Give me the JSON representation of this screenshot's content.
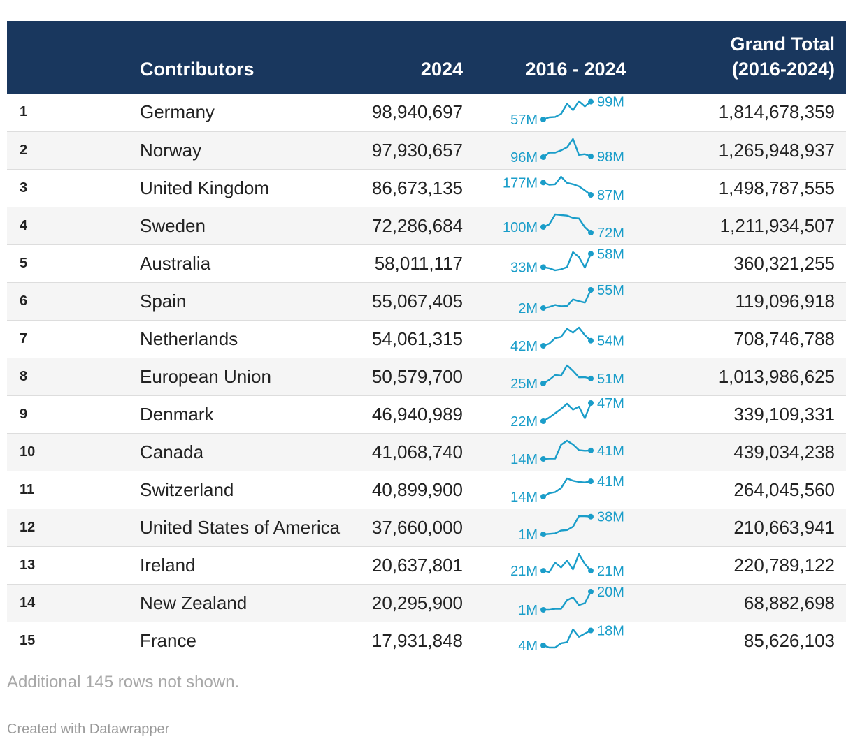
{
  "chart_data": {
    "type": "table",
    "columns": [
      "",
      "Contributors",
      "2024",
      "2016 - 2024",
      "Grand Total (2016-2024)"
    ],
    "columns_lines": {
      "total": [
        "Grand Total",
        "(2016-2024)"
      ]
    },
    "header_color": "#19375e",
    "sparkline_color": "#1a9dc9",
    "rows": [
      {
        "rank": "1",
        "name": "Germany",
        "v2024": "98,940,697",
        "start": "57M",
        "end": "99M",
        "total": "1,814,678,359",
        "trend": [
          57,
          62,
          63,
          70,
          94,
          79,
          100,
          88,
          99
        ]
      },
      {
        "rank": "2",
        "name": "Norway",
        "v2024": "97,930,657",
        "start": "96M",
        "end": "98M",
        "total": "1,265,948,937",
        "trend": [
          96,
          108,
          108,
          114,
          122,
          144,
          102,
          104,
          98
        ]
      },
      {
        "rank": "3",
        "name": "United Kingdom",
        "v2024": "86,673,135",
        "start": "177M",
        "end": "87M",
        "total": "1,498,787,555",
        "trend": [
          177,
          161,
          164,
          220,
          175,
          165,
          150,
          119,
          87
        ]
      },
      {
        "rank": "4",
        "name": "Sweden",
        "v2024": "72,286,684",
        "start": "100M",
        "end": "72M",
        "total": "1,211,934,507",
        "trend": [
          100,
          113,
          163,
          160,
          157,
          146,
          143,
          99,
          72
        ]
      },
      {
        "rank": "5",
        "name": "Australia",
        "v2024": "58,011,117",
        "start": "33M",
        "end": "58M",
        "total": "360,321,255",
        "trend": [
          33,
          31,
          27,
          29,
          33,
          61,
          52,
          32,
          58
        ]
      },
      {
        "rank": "6",
        "name": "Spain",
        "v2024": "55,067,405",
        "start": "2M",
        "end": "55M",
        "total": "119,096,918",
        "trend": [
          2,
          5,
          11,
          7,
          8,
          27,
          22,
          18,
          55
        ]
      },
      {
        "rank": "7",
        "name": "Netherlands",
        "v2024": "54,061,315",
        "start": "42M",
        "end": "54M",
        "total": "708,746,788",
        "trend": [
          42,
          47,
          60,
          63,
          82,
          73,
          85,
          67,
          54
        ]
      },
      {
        "rank": "8",
        "name": "European Union",
        "v2024": "50,579,700",
        "start": "25M",
        "end": "51M",
        "total": "1,013,986,625",
        "trend": [
          25,
          44,
          69,
          66,
          120,
          91,
          57,
          58,
          51
        ]
      },
      {
        "rank": "9",
        "name": "Denmark",
        "v2024": "46,940,989",
        "start": "22M",
        "end": "47M",
        "total": "339,109,331",
        "trend": [
          22,
          27,
          33,
          39,
          46,
          38,
          42,
          26,
          47
        ]
      },
      {
        "rank": "10",
        "name": "Canada",
        "v2024": "41,068,740",
        "start": "14M",
        "end": "41M",
        "total": "439,034,238",
        "trend": [
          14,
          15,
          15,
          59,
          72,
          60,
          42,
          40,
          41
        ]
      },
      {
        "rank": "11",
        "name": "Switzerland",
        "v2024": "40,899,900",
        "start": "14M",
        "end": "41M",
        "total": "264,045,560",
        "trend": [
          14,
          20,
          22,
          29,
          46,
          42,
          40,
          39,
          41
        ]
      },
      {
        "rank": "12",
        "name": "United States of America",
        "v2024": "37,660,000",
        "start": "1M",
        "end": "38M",
        "total": "210,663,941",
        "trend": [
          1,
          2,
          3,
          9,
          10,
          17,
          39,
          39,
          38
        ]
      },
      {
        "rank": "13",
        "name": "Ireland",
        "v2024": "20,637,801",
        "start": "21M",
        "end": "21M",
        "total": "220,789,122",
        "trend": [
          21,
          19,
          33,
          26,
          36,
          23,
          46,
          31,
          21
        ]
      },
      {
        "rank": "14",
        "name": "New Zealand",
        "v2024": "20,295,900",
        "start": "1M",
        "end": "20M",
        "total": "68,882,698",
        "trend": [
          1,
          1,
          2,
          2,
          11,
          14,
          6,
          8,
          20
        ]
      },
      {
        "rank": "15",
        "name": "France",
        "v2024": "17,931,848",
        "start": "4M",
        "end": "18M",
        "total": "85,626,103",
        "trend": [
          4,
          2,
          2,
          6,
          7,
          19,
          12,
          15,
          18
        ]
      }
    ],
    "footnote": "Additional 145 rows not shown."
  },
  "footer": {
    "credit": "Created with Datawrapper"
  }
}
